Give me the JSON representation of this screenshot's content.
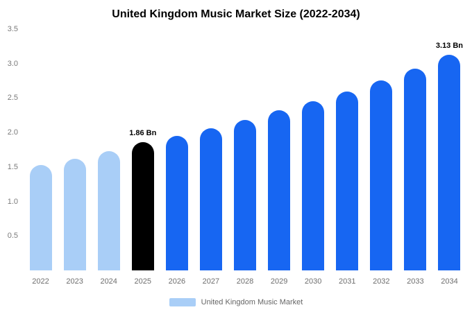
{
  "chart_data": {
    "type": "bar",
    "title": "United Kingdom Music Market Size (2022-2034)",
    "categories": [
      "2022",
      "2023",
      "2024",
      "2025",
      "2026",
      "2027",
      "2028",
      "2029",
      "2030",
      "2031",
      "2032",
      "2033",
      "2034"
    ],
    "values": [
      1.53,
      1.62,
      1.73,
      1.86,
      1.95,
      2.06,
      2.18,
      2.32,
      2.45,
      2.6,
      2.76,
      2.93,
      3.13
    ],
    "unit": "Bn",
    "ylim": [
      0,
      3.5
    ],
    "yticks": [
      "3.5",
      "3.0",
      "2.5",
      "2.0",
      "1.5",
      "1.0",
      "0.5"
    ],
    "bar_colors": [
      "#a9cef7",
      "#a9cef7",
      "#a9cef7",
      "#000000",
      "#1766f2",
      "#1766f2",
      "#1766f2",
      "#1766f2",
      "#1766f2",
      "#1766f2",
      "#1766f2",
      "#1766f2",
      "#1766f2"
    ],
    "annotations": [
      {
        "index": 3,
        "text": "1.86 Bn"
      },
      {
        "index": 12,
        "text": "3.13 Bn"
      }
    ],
    "legend": [
      {
        "label": "United Kingdom Music Market",
        "color": "#a9cef7"
      }
    ],
    "grid": false,
    "legend_position": "bottom"
  }
}
